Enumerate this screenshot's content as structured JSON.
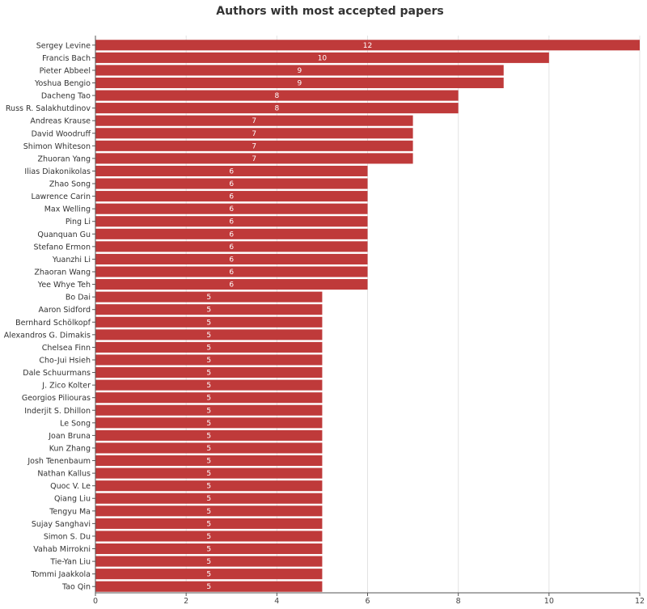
{
  "chart_data": {
    "type": "bar",
    "orientation": "horizontal",
    "title": "Authors with most accepted papers",
    "xlabel": "",
    "ylabel": "",
    "xlim": [
      0,
      12
    ],
    "xticks": [
      0,
      2,
      4,
      6,
      8,
      10,
      12
    ],
    "grid": "vertical",
    "bar_color": "#bf3a3a",
    "categories": [
      "Sergey Levine",
      "Francis Bach",
      "Pieter Abbeel",
      "Yoshua Bengio",
      "Dacheng Tao",
      "Russ R. Salakhutdinov",
      "Andreas Krause",
      "David Woodruff",
      "Shimon Whiteson",
      "Zhuoran Yang",
      "Ilias Diakonikolas",
      "Zhao Song",
      "Lawrence Carin",
      "Max Welling",
      "Ping Li",
      "Quanquan Gu",
      "Stefano Ermon",
      "Yuanzhi Li",
      "Zhaoran Wang",
      "Yee Whye Teh",
      "Bo Dai",
      "Aaron Sidford",
      "Bernhard Schölkopf",
      "Alexandros G. Dimakis",
      "Chelsea Finn",
      "Cho-Jui Hsieh",
      "Dale Schuurmans",
      "J. Zico Kolter",
      "Georgios Piliouras",
      "Inderjit S. Dhillon",
      "Le Song",
      "Joan Bruna",
      "Kun Zhang",
      "Josh Tenenbaum",
      "Nathan Kallus",
      "Quoc V. Le",
      "Qiang Liu",
      "Tengyu Ma",
      "Sujay Sanghavi",
      "Simon S. Du",
      "Vahab Mirrokni",
      "Tie-Yan Liu",
      "Tommi Jaakkola",
      "Tao Qin"
    ],
    "values": [
      12,
      10,
      9,
      9,
      8,
      8,
      7,
      7,
      7,
      7,
      6,
      6,
      6,
      6,
      6,
      6,
      6,
      6,
      6,
      6,
      5,
      5,
      5,
      5,
      5,
      5,
      5,
      5,
      5,
      5,
      5,
      5,
      5,
      5,
      5,
      5,
      5,
      5,
      5,
      5,
      5,
      5,
      5,
      5
    ]
  }
}
